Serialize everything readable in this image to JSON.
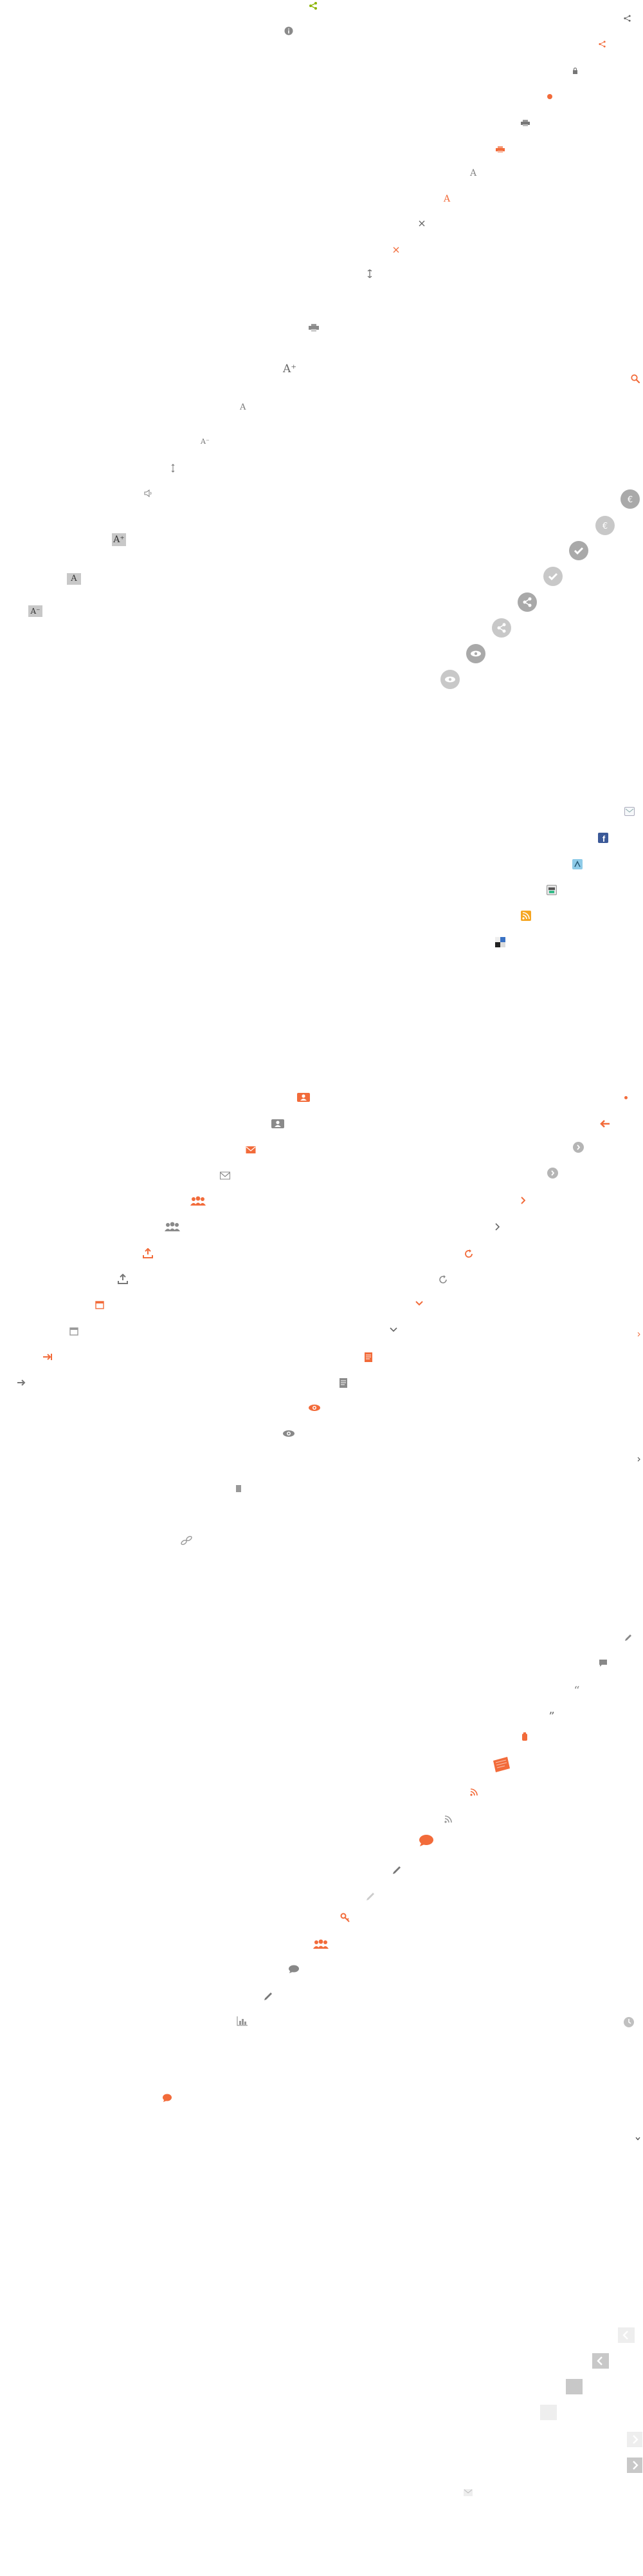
{
  "sprite": {
    "colors": {
      "orange": "#f26b3a",
      "gray": "#8a8a8a",
      "light_gray": "#c8c8c8",
      "green": "#8cb400",
      "blue_social": "#3b5998",
      "circle_gray": "#b5b5b5",
      "white": "#ffffff"
    },
    "font_glyphs": {
      "a_large": "A",
      "a_small": "A",
      "a_plus": "A⁺",
      "a_minus": "A⁻",
      "a_box_plus": "A⁺",
      "a_box": "A",
      "a_box_minus": "A⁻"
    },
    "icons": [
      "share-icon",
      "info-icon",
      "share-small-icon",
      "share-orange-icon",
      "lock-icon",
      "dot-orange-icon",
      "print-icon",
      "print-orange-icon",
      "font-increase-icon",
      "font-increase-orange-icon",
      "font-decrease-icon",
      "font-decrease-orange-icon",
      "font-default-icon",
      "print-large-icon",
      "font-large-plus-icon",
      "font-large-icon",
      "font-large-minus-icon",
      "font-small-default-icon",
      "speaker-icon",
      "font-box-plus-icon",
      "font-box-icon",
      "font-box-minus-icon",
      "search-icon",
      "circle-euro-icon",
      "circle-plus-icon",
      "circle-check-icon",
      "circle-chat-icon",
      "circle-share-icon",
      "circle-link-icon",
      "circle-eye-icon",
      "email-icon",
      "facebook-icon",
      "delicious-icon",
      "print-small-icon",
      "rss-icon",
      "bookmark-icon",
      "person-card-icon",
      "person-card-gray-icon",
      "mail-orange-icon",
      "mail-gray-icon",
      "group-orange-icon",
      "group-gray-icon",
      "upload-orange-icon",
      "upload-gray-icon",
      "calendar-orange-icon",
      "calendar-gray-icon",
      "arrow-right-orange-icon",
      "arrow-right-gray-icon",
      "dot-small-orange-icon",
      "arrow-left-orange-icon",
      "circle-arrow-gray-icon",
      "circle-arrow-light-icon",
      "chevron-right-orange-icon",
      "chevron-right-gray-icon",
      "refresh-orange-icon",
      "refresh-gray-icon",
      "chevron-down-orange-icon",
      "chevron-down-gray-icon",
      "document-orange-icon",
      "document-gray-icon",
      "eye-orange-icon",
      "eye-gray-icon",
      "document-small-icon",
      "link-icon",
      "chevron-right-small-icon",
      "chevron-right-gray-small-icon",
      "pencil-gray-icon",
      "comment-gray-icon",
      "quote-gray-icon",
      "quote-dark-icon",
      "pin-orange-icon",
      "bookmark-orange-large-icon",
      "rss-orange-icon",
      "rss-gray-icon",
      "speech-orange-icon",
      "pencil-dark-icon",
      "pencil-light-icon",
      "key-orange-icon",
      "group-orange-small-icon",
      "comment-dark-icon",
      "pencil-small-icon",
      "chart-icon",
      "speech-orange-small-icon",
      "clock-icon",
      "chevron-down-dark-icon",
      "arrow-left-box-light-icon",
      "arrow-left-box-gray-icon",
      "box-gray-icon",
      "box-light-icon",
      "arrow-right-box-light-icon",
      "arrow-right-box-gray-icon",
      "email-small-icon"
    ]
  }
}
